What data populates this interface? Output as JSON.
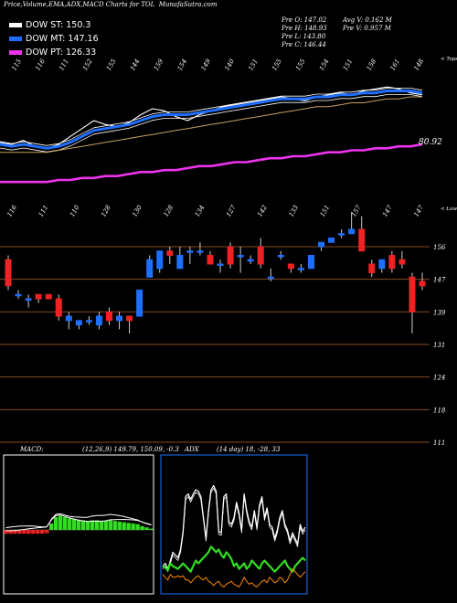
{
  "title": "Price,Volume,EMA,ADX,MACD Charts for TOL",
  "watermark": "MunafaSutra.com",
  "legend": [
    {
      "label": "DOW ST:",
      "value": "150.3",
      "color": "#ffffff"
    },
    {
      "label": "DOW MT:",
      "value": "147.16",
      "color": "#1f6fff"
    },
    {
      "label": "DOW PT:",
      "value": "126.33",
      "color": "#ee33ee"
    }
  ],
  "stats": {
    "pre_o": "Pre  O: 147.02",
    "pre_h": "Pre  H: 148.93",
    "pre_l": "Pre  L: 143.80",
    "pre_c": "Pre  C: 146.44",
    "avg_v": "Avg V: 0.162  M",
    "pre_v": "Pre  V: 0.957 M"
  },
  "colors": {
    "up": "#1f6fff",
    "down": "#ee2222",
    "grid": "#8a4a22",
    "ema_st": "#ffffff",
    "ema_mt": "#1f6fff",
    "ema_pt": "#ee33ee"
  },
  "chart_data": [
    {
      "type": "line",
      "panel": "ema",
      "top_label": "< Tops",
      "bottom_label": "< Lows",
      "last_value_label": "80.92",
      "top_ticks": [
        "115",
        "116",
        "111",
        "152",
        "155",
        "144",
        "159",
        "154",
        "149",
        "140",
        "151",
        "155",
        "155",
        "154",
        "151",
        "158",
        "161",
        "148"
      ],
      "bottom_ticks": [
        "116",
        "111",
        "110",
        "128",
        "130",
        "128",
        "134",
        "127",
        "142",
        "133",
        "151",
        "157",
        "147",
        "147"
      ],
      "series": [
        {
          "values": [
            125,
            124,
            126,
            123,
            122,
            124,
            128,
            132,
            136,
            134,
            133,
            135,
            139,
            142,
            141,
            138,
            136,
            139,
            141,
            143,
            144,
            145,
            146,
            147,
            148,
            147,
            146,
            148,
            149,
            150,
            149,
            151,
            152,
            153,
            152,
            150,
            149
          ]
        },
        {
          "values": [
            124,
            123,
            124,
            123,
            122,
            123,
            125,
            128,
            131,
            132,
            133,
            134,
            136,
            138,
            139,
            139,
            139,
            140,
            141,
            142,
            143,
            144,
            145,
            146,
            147,
            147,
            147,
            148,
            148,
            149,
            149,
            150,
            150,
            151,
            151,
            151,
            150
          ]
        },
        {
          "values": [
            120,
            120,
            120,
            120,
            120,
            121,
            122,
            123,
            124,
            125,
            126,
            127,
            128,
            129,
            130,
            131,
            132,
            133,
            134,
            135,
            136,
            137,
            138,
            139,
            140,
            141,
            142,
            143,
            143,
            144,
            145,
            145,
            146,
            147,
            147,
            148,
            148
          ]
        },
        {
          "values": [
            105,
            105,
            105,
            105,
            105,
            106,
            106,
            107,
            107,
            108,
            108,
            109,
            110,
            110,
            111,
            111,
            112,
            113,
            113,
            114,
            115,
            115,
            116,
            117,
            117,
            118,
            118,
            119,
            120,
            120,
            121,
            121,
            122,
            122,
            123,
            123,
            124
          ]
        }
      ]
    },
    {
      "type": "candlestick",
      "panel": "price",
      "yticks": [
        "156",
        "147",
        "139",
        "131",
        "124",
        "118",
        "111"
      ],
      "candles": [
        {
          "o": 153,
          "h": 154,
          "l": 146,
          "c": 147
        },
        {
          "o": 145,
          "h": 146,
          "l": 144,
          "c": 145
        },
        {
          "o": 144,
          "h": 145,
          "l": 142,
          "c": 144
        },
        {
          "o": 145,
          "h": 145,
          "l": 143,
          "c": 144
        },
        {
          "o": 145,
          "h": 145,
          "l": 144,
          "c": 144
        },
        {
          "o": 144,
          "h": 145,
          "l": 139,
          "c": 140
        },
        {
          "o": 139,
          "h": 141,
          "l": 137,
          "c": 140
        },
        {
          "o": 138,
          "h": 139,
          "l": 137,
          "c": 139
        },
        {
          "o": 139,
          "h": 140,
          "l": 138,
          "c": 139
        },
        {
          "o": 138,
          "h": 141,
          "l": 137,
          "c": 140
        },
        {
          "o": 141,
          "h": 142,
          "l": 138,
          "c": 139
        },
        {
          "o": 139,
          "h": 141,
          "l": 137,
          "c": 140
        },
        {
          "o": 140,
          "h": 140,
          "l": 136,
          "c": 139
        },
        {
          "o": 140,
          "h": 146,
          "l": 140,
          "c": 146
        },
        {
          "o": 149,
          "h": 154,
          "l": 149,
          "c": 153
        },
        {
          "o": 151,
          "h": 155,
          "l": 150,
          "c": 155
        },
        {
          "o": 155,
          "h": 156,
          "l": 152,
          "c": 154
        },
        {
          "o": 151,
          "h": 156,
          "l": 151,
          "c": 154
        },
        {
          "o": 155,
          "h": 156,
          "l": 152,
          "c": 155
        },
        {
          "o": 155,
          "h": 157,
          "l": 154,
          "c": 155
        },
        {
          "o": 154,
          "h": 155,
          "l": 152,
          "c": 152
        },
        {
          "o": 152,
          "h": 153,
          "l": 150,
          "c": 152
        },
        {
          "o": 156,
          "h": 157,
          "l": 151,
          "c": 152
        },
        {
          "o": 154,
          "h": 156,
          "l": 150,
          "c": 154
        },
        {
          "o": 153,
          "h": 154,
          "l": 152,
          "c": 153
        },
        {
          "o": 156,
          "h": 158,
          "l": 151,
          "c": 152
        },
        {
          "o": 149,
          "h": 151,
          "l": 148,
          "c": 149
        },
        {
          "o": 154,
          "h": 155,
          "l": 153,
          "c": 154
        },
        {
          "o": 152,
          "h": 152,
          "l": 150,
          "c": 151
        },
        {
          "o": 151,
          "h": 152,
          "l": 150,
          "c": 151
        },
        {
          "o": 151,
          "h": 154,
          "l": 151,
          "c": 154
        },
        {
          "o": 156,
          "h": 157,
          "l": 155,
          "c": 157
        },
        {
          "o": 157,
          "h": 158,
          "l": 157,
          "c": 158
        },
        {
          "o": 159,
          "h": 160,
          "l": 158,
          "c": 159
        },
        {
          "o": 159,
          "h": 164,
          "l": 159,
          "c": 160
        },
        {
          "o": 160,
          "h": 163,
          "l": 155,
          "c": 155
        },
        {
          "o": 152,
          "h": 153,
          "l": 149,
          "c": 150
        },
        {
          "o": 151,
          "h": 153,
          "l": 150,
          "c": 153
        },
        {
          "o": 154,
          "h": 155,
          "l": 150,
          "c": 151
        },
        {
          "o": 153,
          "h": 155,
          "l": 151,
          "c": 152
        },
        {
          "o": 149,
          "h": 150,
          "l": 136,
          "c": 141
        },
        {
          "o": 148,
          "h": 150,
          "l": 146,
          "c": 147
        }
      ]
    },
    {
      "type": "bar",
      "panel": "macd",
      "label": "MACD:",
      "params": "(12,26,9) 149.79, 150.09, -0.3",
      "values": [
        -0.3,
        -0.3,
        -0.3,
        -0.3,
        -0.3,
        -0.3,
        -0.3,
        -0.3,
        -0.3,
        -0.25,
        0.5,
        1.0,
        1.1,
        1.0,
        0.9,
        0.85,
        0.8,
        0.75,
        0.7,
        0.75,
        0.75,
        0.7,
        0.7,
        0.75,
        0.7,
        0.65,
        0.6,
        0.55,
        0.5,
        0.45,
        0.3,
        0.2,
        0.1
      ]
    },
    {
      "type": "line",
      "panel": "adx",
      "label": "ADX",
      "params": "(14 day) 18, -28, 33",
      "series": [
        {
          "values": [
            20,
            22,
            18,
            24,
            30,
            28,
            26,
            32,
            45,
            70,
            72,
            68,
            72,
            75,
            74,
            70,
            55,
            40,
            60,
            75,
            78,
            74,
            45,
            44,
            70,
            72,
            52,
            50,
            55,
            66,
            58,
            46,
            72,
            60,
            52,
            48,
            60,
            48,
            64,
            70,
            55,
            62,
            50,
            48,
            40,
            46,
            55,
            60,
            50,
            46,
            38,
            44,
            40,
            36,
            50,
            45,
            48
          ]
        },
        {
          "values": [
            20,
            19,
            17,
            22,
            20,
            19,
            18,
            20,
            22,
            20,
            18,
            16,
            20,
            24,
            22,
            24,
            26,
            28,
            30,
            34,
            32,
            30,
            32,
            28,
            26,
            30,
            28,
            25,
            20,
            22,
            18,
            20,
            22,
            18,
            20,
            24,
            22,
            20,
            18,
            22,
            24,
            22,
            20,
            18,
            16,
            18,
            20,
            22,
            24,
            20,
            18,
            16,
            20,
            22,
            24,
            26,
            24
          ]
        },
        {
          "values": [
            14,
            12,
            10,
            14,
            12,
            12,
            13,
            12,
            13,
            10,
            10,
            8,
            10,
            12,
            13,
            11,
            10,
            12,
            9,
            8,
            6,
            8,
            9,
            6,
            5,
            7,
            8,
            9,
            7,
            6,
            5,
            8,
            12,
            9,
            7,
            8,
            6,
            5,
            7,
            9,
            10,
            8,
            12,
            10,
            8,
            9,
            12,
            11,
            8,
            10,
            14,
            18,
            16,
            14,
            12,
            14,
            16
          ]
        }
      ]
    }
  ]
}
